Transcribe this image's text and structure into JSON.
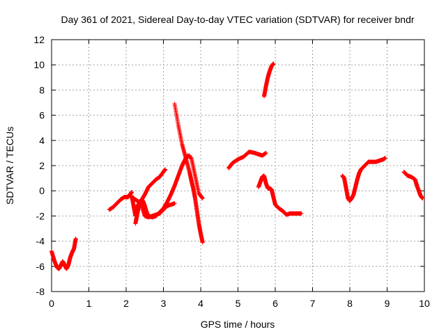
{
  "chart_data": {
    "type": "scatter",
    "title": "Day 361 of 2021, Sidereal Day-to-day VTEC variation (SDTVAR) for receiver bndr",
    "xlabel": "GPS time / hours",
    "ylabel": "SDTVAR / TECUs",
    "xlim": [
      0,
      10
    ],
    "ylim": [
      -8,
      12
    ],
    "xticks": [
      "0",
      "1",
      "2",
      "3",
      "4",
      "5",
      "6",
      "7",
      "8",
      "9",
      "10"
    ],
    "yticks": [
      "-8",
      "-6",
      "-4",
      "-2",
      "0",
      "2",
      "4",
      "6",
      "8",
      "10",
      "12"
    ],
    "grid": true,
    "marker": "plus",
    "color": "#ff0000",
    "segments": [
      {
        "x": [
          0.0,
          0.08,
          0.15,
          0.2,
          0.25,
          0.3,
          0.35,
          0.4,
          0.45,
          0.5,
          0.55,
          0.6,
          0.65
        ],
        "y": [
          -4.8,
          -5.6,
          -6.1,
          -6.2,
          -5.9,
          -5.6,
          -5.9,
          -6.2,
          -5.9,
          -5.3,
          -4.9,
          -4.6,
          -3.8
        ]
      },
      {
        "x": [
          1.55,
          1.65,
          1.75,
          1.85,
          1.95,
          2.05,
          2.1,
          2.15
        ],
        "y": [
          -1.5,
          -1.3,
          -1.0,
          -0.7,
          -0.5,
          -0.5,
          -0.3,
          -0.1
        ]
      },
      {
        "x": [
          2.15,
          2.2,
          2.25,
          2.3,
          2.4,
          2.5,
          2.6,
          2.7,
          2.8,
          2.9,
          3.0,
          3.05
        ],
        "y": [
          -0.4,
          -1.2,
          -2.0,
          -1.2,
          -0.8,
          -0.3,
          0.3,
          0.6,
          0.9,
          1.1,
          1.5,
          1.7
        ]
      },
      {
        "x": [
          2.1,
          2.2,
          2.3,
          2.4,
          2.5,
          2.6,
          2.7,
          2.8,
          2.9,
          3.0,
          3.1,
          3.2,
          3.3
        ],
        "y": [
          -0.4,
          -0.6,
          -0.8,
          -1.0,
          -2.0,
          -2.1,
          -2.0,
          -1.9,
          -1.8,
          -1.5,
          -1.2,
          -1.1,
          -1.0
        ]
      },
      {
        "x": [
          2.25,
          2.3,
          2.35,
          2.4,
          2.45,
          2.5,
          2.55,
          2.6,
          2.7,
          2.8,
          2.9,
          3.0,
          3.1,
          3.2,
          3.3,
          3.4,
          3.5,
          3.6,
          3.7
        ],
        "y": [
          -2.6,
          -1.8,
          -1.1,
          -0.7,
          -0.8,
          -1.2,
          -1.7,
          -2.0,
          -2.1,
          -2.0,
          -1.7,
          -1.4,
          -0.9,
          -0.3,
          0.4,
          1.2,
          2.0,
          2.6,
          2.8
        ]
      },
      {
        "x": [
          3.3,
          3.4,
          3.5,
          3.6,
          3.7,
          3.75,
          3.8,
          3.85,
          3.9,
          3.95,
          4.0,
          4.05
        ],
        "y": [
          6.9,
          5.2,
          3.7,
          2.6,
          1.5,
          0.8,
          0.2,
          -0.6,
          -1.6,
          -2.6,
          -3.4,
          -4.1
        ]
      },
      {
        "x": [
          3.55,
          3.65,
          3.75,
          3.85,
          3.95,
          4.05
        ],
        "y": [
          2.2,
          2.8,
          2.6,
          1.2,
          -0.2,
          -0.6
        ]
      },
      {
        "x": [
          4.75,
          4.85,
          5.0,
          5.15,
          5.3,
          5.45,
          5.55,
          5.65,
          5.75
        ],
        "y": [
          1.8,
          2.2,
          2.5,
          2.7,
          3.1,
          3.0,
          2.9,
          2.8,
          3.0
        ]
      },
      {
        "x": [
          5.55,
          5.6,
          5.65,
          5.7,
          5.75,
          5.8,
          5.85,
          5.9,
          5.95,
          6.0,
          6.1,
          6.2,
          6.3,
          6.4,
          6.55,
          6.7
        ],
        "y": [
          0.3,
          0.7,
          1.1,
          1.2,
          0.6,
          0.2,
          0.2,
          0.1,
          -0.5,
          -1.1,
          -1.4,
          -1.6,
          -1.9,
          -1.8,
          -1.8,
          -1.8
        ]
      },
      {
        "x": [
          5.7,
          5.75,
          5.8,
          5.85,
          5.9,
          5.95
        ],
        "y": [
          7.5,
          8.3,
          9.0,
          9.5,
          9.9,
          10.1
        ]
      },
      {
        "x": [
          7.8,
          7.85,
          7.9,
          7.95,
          8.0,
          8.05,
          8.1,
          8.15,
          8.2,
          8.25,
          8.3,
          8.4,
          8.5,
          8.6,
          8.7,
          8.8,
          8.9,
          8.95
        ],
        "y": [
          1.2,
          1.0,
          0.2,
          -0.6,
          -0.8,
          -0.6,
          -0.3,
          0.3,
          0.9,
          1.4,
          1.7,
          2.0,
          2.3,
          2.3,
          2.3,
          2.4,
          2.5,
          2.6
        ]
      },
      {
        "x": [
          9.45,
          9.55,
          9.65,
          9.75,
          9.8,
          9.85,
          9.9,
          9.95
        ],
        "y": [
          1.5,
          1.2,
          1.1,
          0.9,
          0.4,
          0.0,
          -0.4,
          -0.6
        ]
      }
    ]
  }
}
